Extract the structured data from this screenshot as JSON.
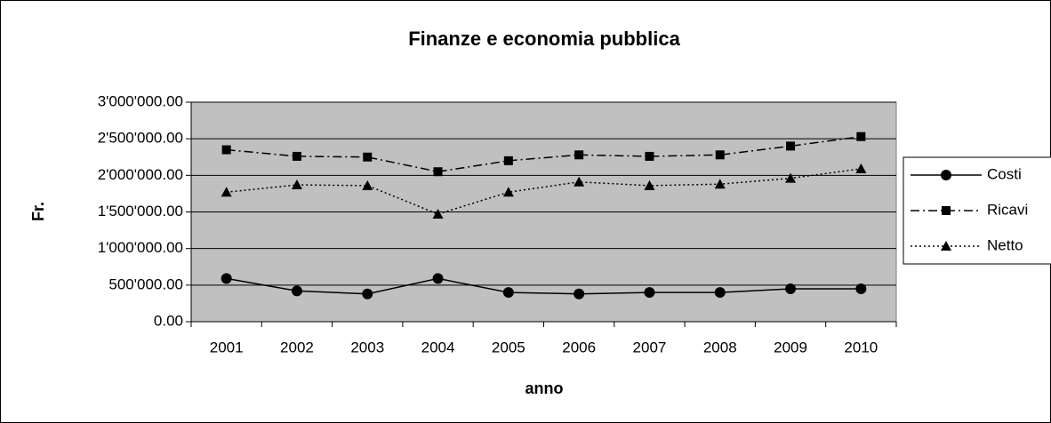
{
  "chart_data": {
    "type": "line",
    "title": "Finanze e economia pubblica",
    "x_label": "anno",
    "y_label": "Fr.",
    "categories": [
      "2001",
      "2002",
      "2003",
      "2004",
      "2005",
      "2006",
      "2007",
      "2008",
      "2009",
      "2010"
    ],
    "series": [
      {
        "name": "Costi",
        "color": "#000000",
        "dash": "solid",
        "marker": "circle",
        "values": [
          590000,
          420000,
          380000,
          590000,
          400000,
          380000,
          400000,
          400000,
          450000,
          450000
        ]
      },
      {
        "name": "Ricavi",
        "color": "#000000",
        "dash": "dashdot",
        "marker": "square",
        "values": [
          2350000,
          2260000,
          2250000,
          2050000,
          2200000,
          2280000,
          2260000,
          2280000,
          2400000,
          2530000
        ]
      },
      {
        "name": "Netto",
        "color": "#000000",
        "dash": "dotted",
        "marker": "triangle",
        "values": [
          1770000,
          1870000,
          1860000,
          1470000,
          1770000,
          1910000,
          1860000,
          1880000,
          1960000,
          2090000
        ]
      }
    ],
    "ylim": [
      0,
      3000000
    ],
    "yticks": [
      {
        "value": 0,
        "label": "0.00"
      },
      {
        "value": 500000,
        "label": "500'000.00"
      },
      {
        "value": 1000000,
        "label": "1'000'000.00"
      },
      {
        "value": 1500000,
        "label": "1'500'000.00"
      },
      {
        "value": 2000000,
        "label": "2'000'000.00"
      },
      {
        "value": 2500000,
        "label": "2'500'000.00"
      },
      {
        "value": 3000000,
        "label": "3'000'000.00"
      }
    ],
    "grid": true,
    "plot_background": "#c0c0c0",
    "legend": "right"
  }
}
